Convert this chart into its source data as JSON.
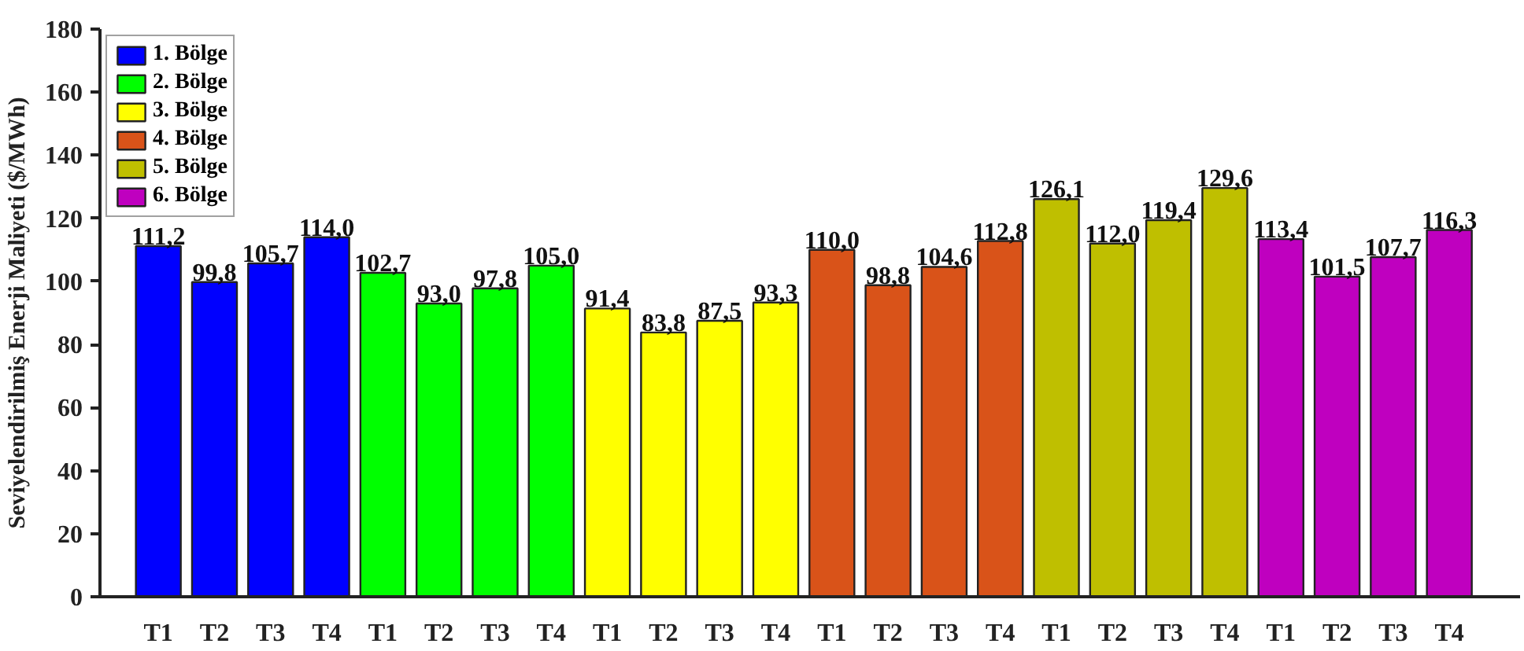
{
  "chart_data": {
    "type": "bar",
    "ylabel": "Seviyelendirilmiş Enerji Maliyeti ($/MWh)",
    "categories": [
      "T1",
      "T2",
      "T3",
      "T4",
      "T1",
      "T2",
      "T3",
      "T4",
      "T1",
      "T2",
      "T3",
      "T4",
      "T1",
      "T2",
      "T3",
      "T4",
      "T1",
      "T2",
      "T3",
      "T4",
      "T1",
      "T2",
      "T3",
      "T4"
    ],
    "series": [
      {
        "name": "1. Bölge",
        "color": "#0000ff",
        "values": [
          111.2,
          99.8,
          105.7,
          114.0,
          null,
          null,
          null,
          null,
          null,
          null,
          null,
          null,
          null,
          null,
          null,
          null,
          null,
          null,
          null,
          null,
          null,
          null,
          null,
          null
        ],
        "value_labels": [
          "111,2",
          "99,8",
          "105,7",
          "114,0",
          null,
          null,
          null,
          null,
          null,
          null,
          null,
          null,
          null,
          null,
          null,
          null,
          null,
          null,
          null,
          null,
          null,
          null,
          null,
          null
        ]
      },
      {
        "name": "2. Bölge",
        "color": "#00ff00",
        "values": [
          null,
          null,
          null,
          null,
          102.7,
          93.0,
          97.8,
          105.0,
          null,
          null,
          null,
          null,
          null,
          null,
          null,
          null,
          null,
          null,
          null,
          null,
          null,
          null,
          null,
          null
        ],
        "value_labels": [
          null,
          null,
          null,
          null,
          "102,7",
          "93,0",
          "97,8",
          "105,0",
          null,
          null,
          null,
          null,
          null,
          null,
          null,
          null,
          null,
          null,
          null,
          null,
          null,
          null,
          null,
          null
        ]
      },
      {
        "name": "3. Bölge",
        "color": "#ffff00",
        "values": [
          null,
          null,
          null,
          null,
          null,
          null,
          null,
          null,
          91.4,
          83.8,
          87.5,
          93.3,
          null,
          null,
          null,
          null,
          null,
          null,
          null,
          null,
          null,
          null,
          null,
          null
        ],
        "value_labels": [
          null,
          null,
          null,
          null,
          null,
          null,
          null,
          null,
          "91,4",
          "83,8",
          "87,5",
          "93,3",
          null,
          null,
          null,
          null,
          null,
          null,
          null,
          null,
          null,
          null,
          null,
          null
        ]
      },
      {
        "name": "4. Bölge",
        "color": "#d95319",
        "values": [
          null,
          null,
          null,
          null,
          null,
          null,
          null,
          null,
          null,
          null,
          null,
          null,
          110.0,
          98.8,
          104.6,
          112.8,
          null,
          null,
          null,
          null,
          null,
          null,
          null,
          null
        ],
        "value_labels": [
          null,
          null,
          null,
          null,
          null,
          null,
          null,
          null,
          null,
          null,
          null,
          null,
          "110,0",
          "98,8",
          "104,6",
          "112,8",
          null,
          null,
          null,
          null,
          null,
          null,
          null,
          null
        ]
      },
      {
        "name": "5. Bölge",
        "color": "#bfbf00",
        "values": [
          null,
          null,
          null,
          null,
          null,
          null,
          null,
          null,
          null,
          null,
          null,
          null,
          null,
          null,
          null,
          null,
          126.1,
          112.0,
          119.4,
          129.6,
          null,
          null,
          null,
          null
        ],
        "value_labels": [
          null,
          null,
          null,
          null,
          null,
          null,
          null,
          null,
          null,
          null,
          null,
          null,
          null,
          null,
          null,
          null,
          "126,1",
          "112,0",
          "119,4",
          "129,6",
          null,
          null,
          null,
          null
        ]
      },
      {
        "name": "6. Bölge",
        "color": "#bf00bf",
        "values": [
          null,
          null,
          null,
          null,
          null,
          null,
          null,
          null,
          null,
          null,
          null,
          null,
          null,
          null,
          null,
          null,
          null,
          null,
          null,
          null,
          113.4,
          101.5,
          107.7,
          116.3
        ],
        "value_labels": [
          null,
          null,
          null,
          null,
          null,
          null,
          null,
          null,
          null,
          null,
          null,
          null,
          null,
          null,
          null,
          null,
          null,
          null,
          null,
          null,
          "113,4",
          "101,5",
          "107,7",
          "116,3"
        ]
      }
    ],
    "ylim": [
      0,
      180
    ],
    "yticks": [
      0,
      20,
      40,
      60,
      80,
      100,
      120,
      140,
      160,
      180
    ],
    "grid": false,
    "legend": "top left"
  }
}
